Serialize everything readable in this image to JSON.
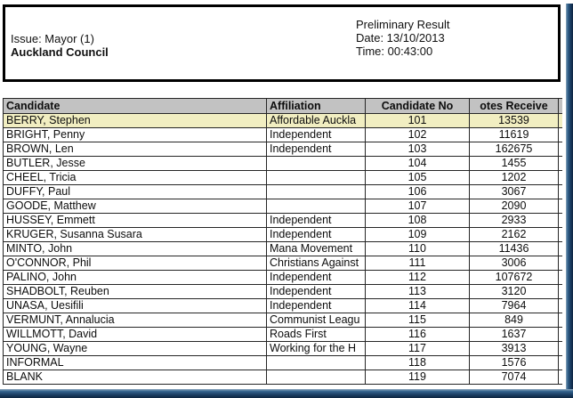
{
  "header": {
    "issue": "Issue: Mayor (1)",
    "council": "Auckland Council",
    "result_type": "Preliminary Result",
    "date": "Date: 13/10/2013",
    "time": "Time: 00:43:00"
  },
  "table": {
    "columns": [
      "Candidate",
      "Affiliation",
      "Candidate No",
      "otes Receive"
    ],
    "highlight_row": 0,
    "rows": [
      {
        "candidate": "BERRY, Stephen",
        "affiliation": "Affordable Auckla",
        "candidate_no": "101",
        "votes": "13539"
      },
      {
        "candidate": "BRIGHT, Penny",
        "affiliation": "Independent",
        "candidate_no": "102",
        "votes": "11619"
      },
      {
        "candidate": "BROWN, Len",
        "affiliation": "Independent",
        "candidate_no": "103",
        "votes": "162675"
      },
      {
        "candidate": "BUTLER, Jesse",
        "affiliation": "",
        "candidate_no": "104",
        "votes": "1455"
      },
      {
        "candidate": "CHEEL, Tricia",
        "affiliation": "",
        "candidate_no": "105",
        "votes": "1202"
      },
      {
        "candidate": "DUFFY, Paul",
        "affiliation": "",
        "candidate_no": "106",
        "votes": "3067"
      },
      {
        "candidate": "GOODE, Matthew",
        "affiliation": "",
        "candidate_no": "107",
        "votes": "2090"
      },
      {
        "candidate": "HUSSEY, Emmett",
        "affiliation": "Independent",
        "candidate_no": "108",
        "votes": "2933"
      },
      {
        "candidate": "KRUGER, Susanna Susara",
        "affiliation": "Independent",
        "candidate_no": "109",
        "votes": "2162"
      },
      {
        "candidate": "MINTO, John",
        "affiliation": "Mana Movement",
        "candidate_no": "110",
        "votes": "11436"
      },
      {
        "candidate": "O'CONNOR, Phil",
        "affiliation": "Christians Against",
        "candidate_no": "111",
        "votes": "3006"
      },
      {
        "candidate": "PALINO, John",
        "affiliation": "Independent",
        "candidate_no": "112",
        "votes": "107672"
      },
      {
        "candidate": "SHADBOLT, Reuben",
        "affiliation": "Independent",
        "candidate_no": "113",
        "votes": "3120"
      },
      {
        "candidate": "UNASA, Uesifili",
        "affiliation": "Independent",
        "candidate_no": "114",
        "votes": "7964"
      },
      {
        "candidate": "VERMUNT, Annalucia",
        "affiliation": "Communist Leagu",
        "candidate_no": "115",
        "votes": "849"
      },
      {
        "candidate": "WILLMOTT, David",
        "affiliation": "Roads First",
        "candidate_no": "116",
        "votes": "1637"
      },
      {
        "candidate": "YOUNG, Wayne",
        "affiliation": "Working for the H",
        "candidate_no": "117",
        "votes": "3913"
      },
      {
        "candidate": "INFORMAL",
        "affiliation": "",
        "candidate_no": "118",
        "votes": "1576"
      },
      {
        "candidate": "BLANK",
        "affiliation": "",
        "candidate_no": "119",
        "votes": "7074"
      }
    ]
  },
  "colors": {
    "header_row_bg": "#c2c2c2",
    "highlight_bg": "#f1eec1",
    "grid_line": "#262626",
    "frame_blue_light": "#8fa9be",
    "frame_blue_mid": "#35648e",
    "frame_blue_dark": "#0c2440"
  }
}
